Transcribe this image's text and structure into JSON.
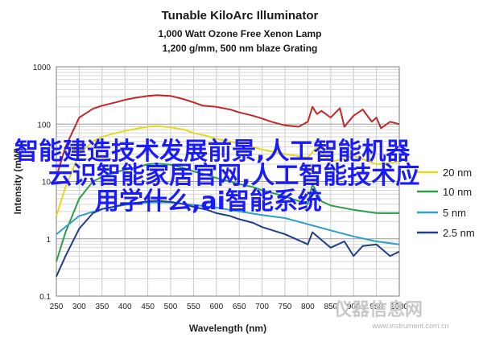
{
  "chart_data": {
    "type": "line",
    "title": "Tunable KiloArc Illuminator",
    "subtitle_line1": "1,000 Watt Ozone Free Xenon Lamp",
    "subtitle_line2": "1,200 g/mm, 500 nm blaze Grating",
    "xlabel": "Wavelength (nm)",
    "ylabel": "Intensity (mW)",
    "xlim": [
      250,
      1000
    ],
    "ylim": [
      0.1,
      1000
    ],
    "yscale": "log",
    "grid": true,
    "legend_position": "right",
    "x_ticks": [
      "250",
      "300",
      "350",
      "400",
      "450",
      "500",
      "550",
      "600",
      "650",
      "700",
      "750",
      "800",
      "850",
      "900",
      "950",
      "1000"
    ],
    "y_ticks": [
      "0.1",
      "1",
      "10",
      "100",
      "1000"
    ],
    "series": [
      {
        "name": "",
        "color": "#c0282a",
        "x": [
          250,
          270,
          300,
          330,
          350,
          380,
          400,
          420,
          450,
          470,
          500,
          530,
          550,
          570,
          600,
          630,
          650,
          680,
          700,
          720,
          750,
          780,
          800,
          810,
          820,
          830,
          850,
          870,
          880,
          900,
          920,
          940,
          950,
          960,
          980,
          1000
        ],
        "y": [
          12,
          40,
          130,
          185,
          210,
          240,
          265,
          285,
          310,
          320,
          310,
          270,
          240,
          210,
          200,
          180,
          160,
          140,
          125,
          110,
          95,
          90,
          110,
          200,
          150,
          170,
          130,
          190,
          90,
          140,
          180,
          110,
          130,
          85,
          110,
          100
        ]
      },
      {
        "name": "20 nm",
        "color": "#e8d81a",
        "x": [
          250,
          270,
          300,
          330,
          350,
          380,
          400,
          430,
          450,
          470,
          500,
          530,
          550,
          580,
          600,
          630,
          650,
          680,
          700,
          750,
          800,
          820,
          850,
          900,
          950,
          1000
        ],
        "y": [
          2.5,
          8,
          30,
          50,
          60,
          70,
          76,
          85,
          90,
          92,
          88,
          80,
          70,
          62,
          55,
          50,
          45,
          40,
          36,
          30,
          26,
          40,
          22,
          28,
          20,
          22
        ]
      },
      {
        "name": "10 nm",
        "color": "#2e9e48",
        "x": [
          250,
          270,
          300,
          330,
          350,
          380,
          400,
          430,
          450,
          470,
          500,
          530,
          550,
          580,
          600,
          630,
          650,
          680,
          700,
          750,
          800,
          810,
          830,
          850,
          900,
          950,
          1000
        ],
        "y": [
          0.4,
          1.3,
          5,
          10,
          12,
          14.5,
          16,
          18,
          20,
          20.5,
          19.5,
          17,
          15,
          13,
          11.5,
          10,
          9,
          8,
          7,
          5.5,
          4,
          9,
          4.5,
          3.8,
          3.2,
          2.8,
          2.8
        ]
      },
      {
        "name": "5 nm",
        "color": "#2aa0c8",
        "x": [
          250,
          300,
          350,
          400,
          450,
          500,
          550,
          600,
          650,
          700,
          750,
          800,
          850,
          900,
          950,
          1000
        ],
        "y": [
          1.2,
          2.5,
          3.3,
          3.9,
          4.3,
          4.3,
          3.9,
          3.5,
          3.0,
          2.6,
          2.3,
          1.8,
          1.4,
          1.1,
          0.9,
          0.8
        ]
      },
      {
        "name": "2.5 nm",
        "color": "#1f3f8a",
        "x": [
          250,
          270,
          300,
          330,
          350,
          380,
          400,
          430,
          450,
          470,
          500,
          530,
          550,
          580,
          600,
          630,
          650,
          680,
          700,
          750,
          800,
          810,
          830,
          850,
          880,
          900,
          920,
          950,
          980,
          1000
        ],
        "y": [
          0.22,
          0.5,
          1.5,
          2.8,
          3.3,
          3.7,
          4,
          4.3,
          4.5,
          4.6,
          4.4,
          4,
          3.6,
          3.2,
          2.8,
          2.5,
          2.2,
          1.9,
          1.6,
          1.2,
          0.8,
          1.3,
          0.95,
          0.7,
          0.9,
          0.5,
          0.75,
          0.8,
          0.5,
          0.6
        ]
      }
    ]
  },
  "overlay_text": {
    "line1": "智能建造技术发展前景,人工智能机器",
    "line2": "云识智能家居官网,人工智能技术应",
    "line3": "用学什么,ai智能系统"
  },
  "watermark": {
    "main": "仪器信息网",
    "sub": "www.instrument.com.cn"
  }
}
